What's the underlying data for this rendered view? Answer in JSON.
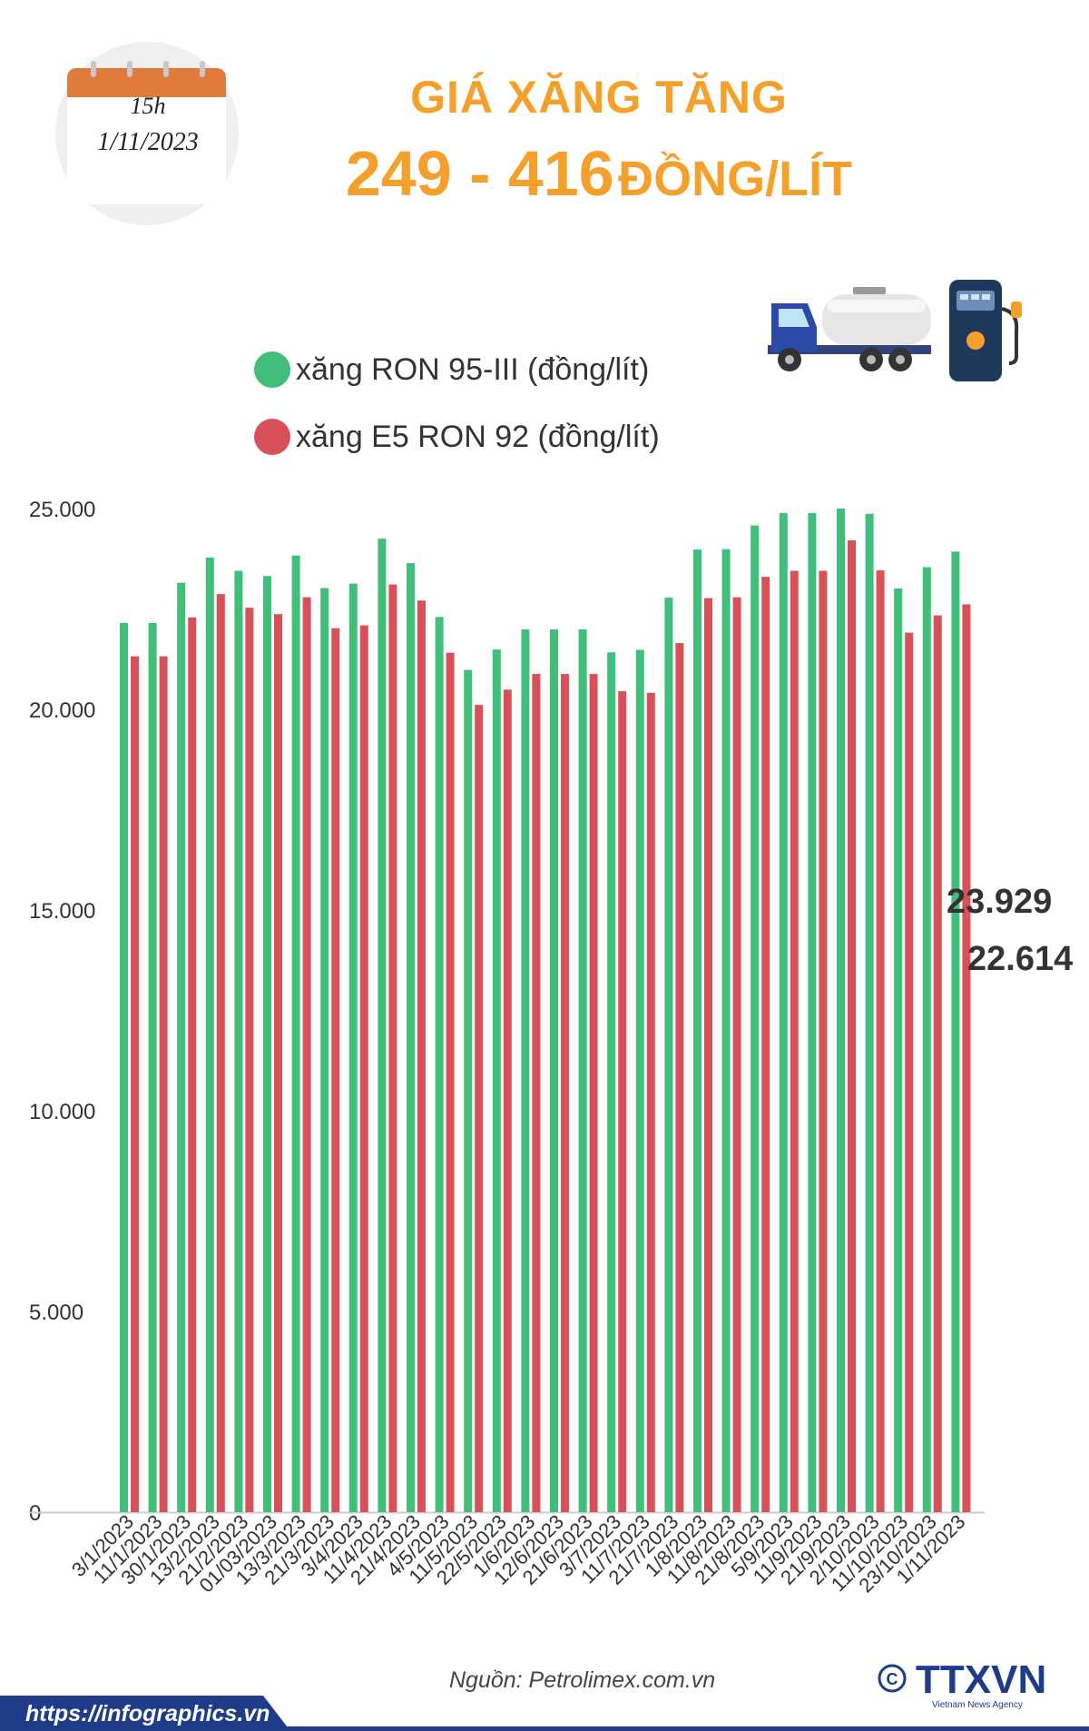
{
  "calendar": {
    "time": "15h",
    "date": "1/11/2023"
  },
  "header": {
    "title_line1": "GIÁ XĂNG TĂNG",
    "title_range": "249 - 416",
    "title_unit": "ĐỒNG/LÍT"
  },
  "legend": [
    {
      "label": "xăng RON 95-III (đồng/lít)",
      "color": "#40bf7a"
    },
    {
      "label": "xăng E5 RON 92 (đồng/lít)",
      "color": "#d95158"
    }
  ],
  "chart_data": {
    "type": "bar",
    "title": "GIÁ XĂNG TĂNG 249 - 416 ĐỒNG/LÍT",
    "xlabel": "",
    "ylabel": "",
    "ylim": [
      0,
      25000
    ],
    "yticks": [
      0,
      5000,
      10000,
      15000,
      20000,
      25000
    ],
    "ytick_labels": [
      "0",
      "5.000",
      "10.000",
      "15.000",
      "20.000",
      "25.000"
    ],
    "grid": false,
    "legend_position": "top-left",
    "categories": [
      "3/1/2023",
      "11/1/2023",
      "30/1/2023",
      "13/2/2023",
      "21/2/2023",
      "01/03/2023",
      "13/3/2023",
      "21/3/2023",
      "3/4/2023",
      "11/4/2023",
      "21/4/2023",
      "4/5/2023",
      "11/5/2023",
      "22/5/2023",
      "1/6/2023",
      "12/6/2023",
      "21/6/2023",
      "3/7/2023",
      "11/7/2023",
      "21/7/2023",
      "1/8/2023",
      "11/8/2023",
      "21/8/2023",
      "5/9/2023",
      "11/9/2023",
      "21/9/2023",
      "2/10/2023",
      "11/10/2023",
      "23/10/2023",
      "1/11/2023"
    ],
    "series": [
      {
        "name": "xăng RON 95-III (đồng/lít)",
        "color": "#40bf7a",
        "values": [
          22150,
          22150,
          23150,
          23780,
          23450,
          23320,
          23830,
          23020,
          23130,
          24250,
          23640,
          22300,
          20980,
          21490,
          21990,
          21990,
          21990,
          21420,
          21480,
          22780,
          23980,
          23990,
          24580,
          24890,
          24890,
          25000,
          24870,
          23010,
          23540,
          23929
        ]
      },
      {
        "name": "xăng E5 RON 92 (đồng/lít)",
        "color": "#d95158",
        "values": [
          21320,
          21320,
          22290,
          22870,
          22530,
          22370,
          22790,
          22020,
          22090,
          23110,
          22710,
          21410,
          20110,
          20490,
          20880,
          20880,
          20880,
          20450,
          20410,
          21650,
          22770,
          22790,
          23300,
          23450,
          23450,
          24210,
          23460,
          21910,
          22340,
          22614
        ]
      }
    ],
    "annotations": [
      {
        "series": "xăng RON 95-III (đồng/lít)",
        "category": "1/11/2023",
        "text": "23.929"
      },
      {
        "series": "xăng E5 RON 92 (đồng/lít)",
        "category": "1/11/2023",
        "text": "22.614"
      }
    ]
  },
  "footer": {
    "source": "Nguồn: Petrolimex.com.vn",
    "url": "https://infographics.vn",
    "logo_text": "TTXVN",
    "logo_subtext": "Vietnam News Agency",
    "copyright_symbol": "©"
  },
  "colors": {
    "accent": "#f4a02a",
    "calendar": "#e07b3c",
    "band": "#1f3c88"
  }
}
